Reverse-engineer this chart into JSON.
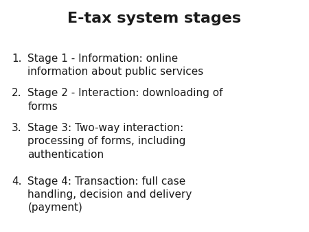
{
  "title": "E-tax system stages",
  "title_fontsize": 16,
  "title_fontweight": "bold",
  "items": [
    "Stage 1 - Information: online\ninformation about public services",
    "Stage 2 - Interaction: downloading of\nforms",
    "Stage 3: Two-way interaction:\nprocessing of forms, including\nauthentication",
    "Stage 4: Transaction: full case\nhandling, decision and delivery\n(payment)"
  ],
  "item_fontsize": 11,
  "background_color": "#ffffff",
  "text_color": "#1a1a1a",
  "font_family": "DejaVu Sans"
}
